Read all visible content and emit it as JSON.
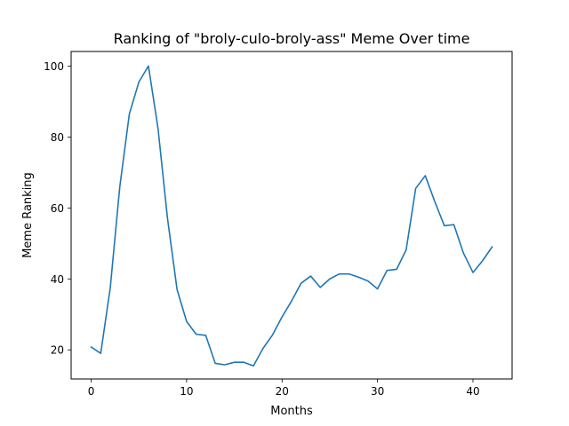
{
  "chart_data": {
    "type": "line",
    "title": "Ranking of \"broly-culo-broly-ass\" Meme Over time",
    "xlabel": "Months",
    "ylabel": "Meme Ranking",
    "xlim": [
      -2.1,
      44.1
    ],
    "ylim": [
      11.8,
      104.1
    ],
    "xticks": [
      0,
      10,
      20,
      30,
      40
    ],
    "yticks": [
      20,
      40,
      60,
      80,
      100
    ],
    "grid": false,
    "series": [
      {
        "color": "#1f77b4",
        "x": [
          0,
          1,
          2,
          3,
          4,
          5,
          6,
          7,
          8,
          9,
          10,
          11,
          12,
          13,
          14,
          15,
          16,
          17,
          18,
          19,
          20,
          21,
          22,
          23,
          24,
          25,
          26,
          27,
          28,
          29,
          30,
          31,
          32,
          33,
          34,
          35,
          36,
          37,
          38,
          39,
          40,
          41,
          42
        ],
        "values": [
          20.8,
          19.0,
          37.5,
          66.0,
          86.5,
          95.5,
          100.0,
          82.5,
          57.0,
          37.0,
          28.0,
          24.4,
          24.1,
          16.2,
          15.8,
          16.5,
          16.5,
          15.5,
          20.4,
          24.2,
          29.3,
          33.8,
          38.8,
          40.8,
          37.6,
          40.0,
          41.4,
          41.4,
          40.5,
          39.4,
          37.2,
          42.4,
          42.7,
          48.2,
          65.5,
          69.1,
          61.8,
          55.0,
          55.3,
          47.3,
          41.8,
          45.1,
          49.0
        ]
      }
    ]
  }
}
